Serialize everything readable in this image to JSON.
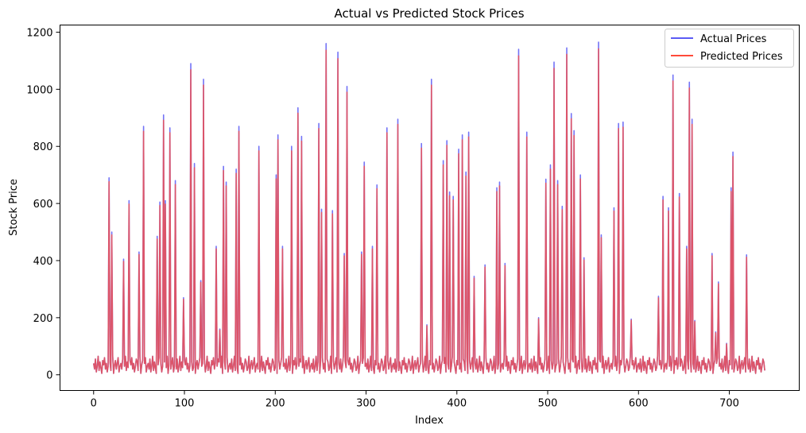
{
  "chart_data": {
    "type": "line",
    "title": "Actual vs Predicted Stock Prices",
    "xlabel": "Index",
    "ylabel": "Stock Price",
    "xlim": [
      -37,
      777
    ],
    "ylim": [
      -55,
      1225
    ],
    "xticks": [
      0,
      100,
      200,
      300,
      400,
      500,
      600,
      700
    ],
    "yticks": [
      0,
      200,
      400,
      600,
      800,
      1000,
      1200
    ],
    "grid": false,
    "legend_position": "top-right",
    "n_points": 740,
    "baseline": [
      40,
      20,
      55,
      10,
      30,
      65,
      15,
      45,
      25,
      5,
      50,
      35,
      60,
      20,
      40,
      10,
      30,
      55,
      45,
      15,
      25,
      65,
      5,
      35,
      50,
      20,
      40,
      60,
      10,
      30
    ],
    "peaks": [
      [
        17,
        690
      ],
      [
        20,
        500
      ],
      [
        33,
        405
      ],
      [
        39,
        610
      ],
      [
        50,
        430
      ],
      [
        55,
        870
      ],
      [
        70,
        485
      ],
      [
        73,
        605
      ],
      [
        77,
        910
      ],
      [
        79,
        610
      ],
      [
        84,
        865
      ],
      [
        90,
        680
      ],
      [
        99,
        270
      ],
      [
        107,
        1090
      ],
      [
        111,
        740
      ],
      [
        118,
        330
      ],
      [
        121,
        1035
      ],
      [
        135,
        450
      ],
      [
        139,
        160
      ],
      [
        143,
        730
      ],
      [
        146,
        675
      ],
      [
        157,
        720
      ],
      [
        160,
        870
      ],
      [
        182,
        800
      ],
      [
        201,
        700
      ],
      [
        203,
        840
      ],
      [
        208,
        450
      ],
      [
        218,
        800
      ],
      [
        225,
        935
      ],
      [
        229,
        835
      ],
      [
        248,
        880
      ],
      [
        251,
        580
      ],
      [
        256,
        1160
      ],
      [
        263,
        575
      ],
      [
        269,
        1130
      ],
      [
        276,
        425
      ],
      [
        279,
        1010
      ],
      [
        295,
        430
      ],
      [
        298,
        745
      ],
      [
        307,
        450
      ],
      [
        312,
        665
      ],
      [
        323,
        865
      ],
      [
        335,
        895
      ],
      [
        361,
        810
      ],
      [
        367,
        175
      ],
      [
        372,
        1035
      ],
      [
        385,
        750
      ],
      [
        389,
        820
      ],
      [
        392,
        640
      ],
      [
        396,
        625
      ],
      [
        402,
        790
      ],
      [
        406,
        840
      ],
      [
        410,
        710
      ],
      [
        413,
        850
      ],
      [
        419,
        345
      ],
      [
        431,
        385
      ],
      [
        444,
        655
      ],
      [
        447,
        675
      ],
      [
        453,
        390
      ],
      [
        468,
        1140
      ],
      [
        477,
        850
      ],
      [
        490,
        200
      ],
      [
        498,
        685
      ],
      [
        503,
        735
      ],
      [
        507,
        1095
      ],
      [
        511,
        680
      ],
      [
        516,
        590
      ],
      [
        521,
        1145
      ],
      [
        526,
        915
      ],
      [
        529,
        855
      ],
      [
        536,
        700
      ],
      [
        540,
        410
      ],
      [
        556,
        1165
      ],
      [
        559,
        490
      ],
      [
        573,
        585
      ],
      [
        578,
        880
      ],
      [
        583,
        885
      ],
      [
        592,
        195
      ],
      [
        622,
        275
      ],
      [
        627,
        625
      ],
      [
        633,
        585
      ],
      [
        638,
        1050
      ],
      [
        645,
        635
      ],
      [
        653,
        450
      ],
      [
        656,
        1025
      ],
      [
        659,
        895
      ],
      [
        662,
        190
      ],
      [
        681,
        425
      ],
      [
        685,
        150
      ],
      [
        688,
        325
      ],
      [
        697,
        110
      ],
      [
        702,
        655
      ],
      [
        704,
        780
      ],
      [
        719,
        420
      ]
    ],
    "series": [
      {
        "name": "Actual Prices",
        "color": "#5b5bf5",
        "offset": 0
      },
      {
        "name": "Predicted Prices",
        "color": "#ff4a3a",
        "offset": -0.02
      }
    ]
  }
}
